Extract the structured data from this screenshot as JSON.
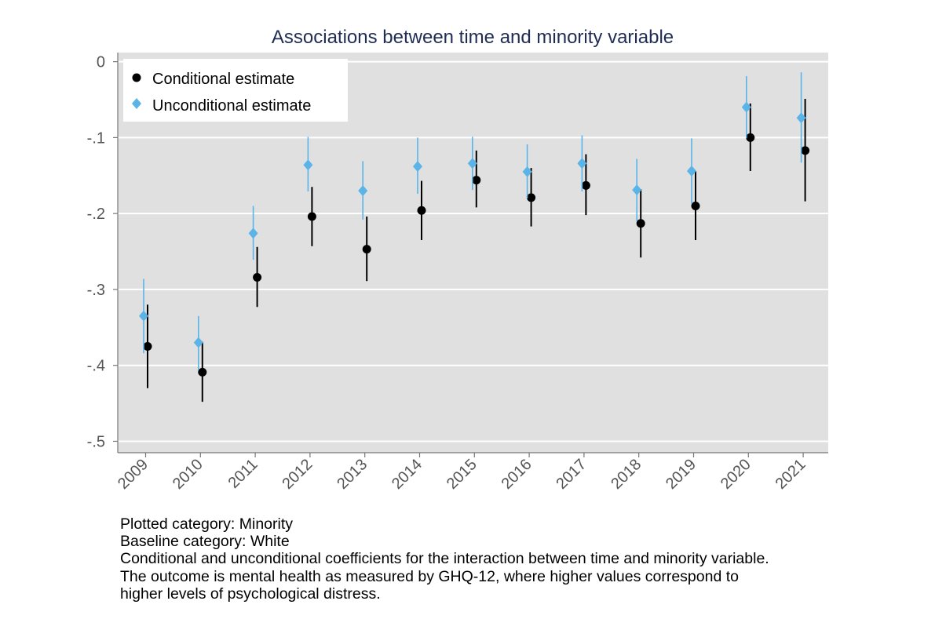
{
  "chart_data": {
    "type": "scatter",
    "title": "Associations between time and minority variable",
    "categories": [
      "2009",
      "2010",
      "2011",
      "2012",
      "2013",
      "2014",
      "2015",
      "2016",
      "2017",
      "2018",
      "2019",
      "2020",
      "2021"
    ],
    "ylim": [
      -0.515,
      0.012
    ],
    "yticks": [
      0,
      -0.1,
      -0.2,
      -0.3,
      -0.4,
      -0.5
    ],
    "ytick_labels": [
      "0",
      "-.1",
      "-.2",
      "-.3",
      "-.4",
      "-.5"
    ],
    "grid": true,
    "legend_position": "top-left",
    "background_color": "#e0e0e0",
    "series": [
      {
        "name": "Conditional estimate",
        "marker": "circle",
        "color": "#000000",
        "values": [
          -0.375,
          -0.409,
          -0.284,
          -0.204,
          -0.247,
          -0.196,
          -0.156,
          -0.179,
          -0.163,
          -0.213,
          -0.19,
          -0.1,
          -0.117
        ],
        "ci_low": [
          -0.43,
          -0.448,
          -0.323,
          -0.243,
          -0.289,
          -0.235,
          -0.192,
          -0.217,
          -0.202,
          -0.258,
          -0.235,
          -0.144,
          -0.184
        ],
        "ci_high": [
          -0.32,
          -0.369,
          -0.244,
          -0.165,
          -0.204,
          -0.157,
          -0.117,
          -0.14,
          -0.122,
          -0.168,
          -0.144,
          -0.055,
          -0.049
        ]
      },
      {
        "name": "Unconditional estimate",
        "marker": "diamond",
        "color": "#5ab4e8",
        "values": [
          -0.335,
          -0.37,
          -0.226,
          -0.136,
          -0.17,
          -0.138,
          -0.134,
          -0.145,
          -0.134,
          -0.169,
          -0.144,
          -0.06,
          -0.074
        ],
        "ci_low": [
          -0.384,
          -0.406,
          -0.261,
          -0.171,
          -0.208,
          -0.174,
          -0.169,
          -0.18,
          -0.171,
          -0.21,
          -0.187,
          -0.101,
          -0.133
        ],
        "ci_high": [
          -0.286,
          -0.335,
          -0.19,
          -0.099,
          -0.131,
          -0.1,
          -0.099,
          -0.109,
          -0.097,
          -0.128,
          -0.101,
          -0.019,
          -0.014
        ]
      }
    ]
  },
  "notes": [
    "Plotted category: Minority",
    "Baseline category: White",
    "Conditional and unconditional coefficients for the interaction between time and minority variable.",
    "The outcome is mental health as measured by GHQ-12, where higher values correspond to",
    "higher levels of psychological distress."
  ],
  "colors": {
    "title": "#1f2d54",
    "axis_text": "#555555",
    "grid": "#ffffff",
    "plot_bg": "#e0e0e0"
  }
}
